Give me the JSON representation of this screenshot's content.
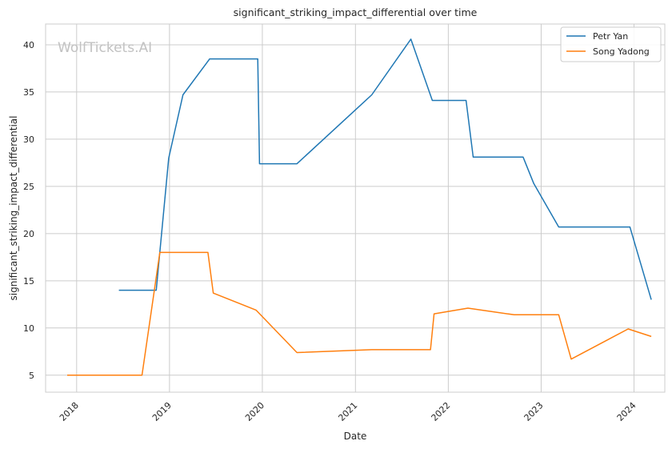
{
  "chart_data": {
    "type": "line",
    "title": "significant_striking_impact_differential over time",
    "xlabel": "Date",
    "ylabel": "significant_striking_impact_differential",
    "watermark": "WolfTickets.AI",
    "x_ticks": [
      "2018",
      "2019",
      "2020",
      "2021",
      "2022",
      "2023",
      "2024"
    ],
    "y_ticks": [
      5,
      10,
      15,
      20,
      25,
      30,
      35,
      40
    ],
    "xlim": [
      "2017-09-01",
      "2024-05-01"
    ],
    "ylim": [
      3.2,
      42.2
    ],
    "grid": true,
    "legend_position": "top-right",
    "series": [
      {
        "name": "Petr Yan",
        "color": "#1f77b4",
        "points": [
          [
            "2018-06-16",
            14.0
          ],
          [
            "2018-11-10",
            14.0
          ],
          [
            "2018-12-29",
            28.0
          ],
          [
            "2019-02-23",
            34.7
          ],
          [
            "2019-06-08",
            38.5
          ],
          [
            "2019-12-14",
            38.5
          ],
          [
            "2019-12-21",
            27.4
          ],
          [
            "2020-05-16",
            27.4
          ],
          [
            "2021-03-06",
            34.7
          ],
          [
            "2021-08-07",
            40.6
          ],
          [
            "2021-10-30",
            34.1
          ],
          [
            "2022-03-12",
            34.1
          ],
          [
            "2022-04-09",
            28.1
          ],
          [
            "2022-10-22",
            28.1
          ],
          [
            "2022-12-03",
            25.3
          ],
          [
            "2023-03-11",
            20.7
          ],
          [
            "2023-12-16",
            20.7
          ],
          [
            "2024-03-09",
            13.0
          ]
        ]
      },
      {
        "name": "Song Yadong",
        "color": "#ff7f0e",
        "points": [
          [
            "2017-11-25",
            5.0
          ],
          [
            "2018-09-15",
            5.0
          ],
          [
            "2018-11-24",
            18.0
          ],
          [
            "2019-06-01",
            18.0
          ],
          [
            "2019-06-22",
            13.7
          ],
          [
            "2019-12-07",
            11.9
          ],
          [
            "2020-05-16",
            7.4
          ],
          [
            "2021-03-06",
            7.7
          ],
          [
            "2021-10-23",
            7.7
          ],
          [
            "2021-11-06",
            11.5
          ],
          [
            "2022-03-19",
            12.1
          ],
          [
            "2022-09-17",
            11.4
          ],
          [
            "2023-03-11",
            11.4
          ],
          [
            "2023-04-29",
            6.7
          ],
          [
            "2023-12-09",
            9.9
          ],
          [
            "2024-03-09",
            9.1
          ]
        ]
      }
    ]
  }
}
